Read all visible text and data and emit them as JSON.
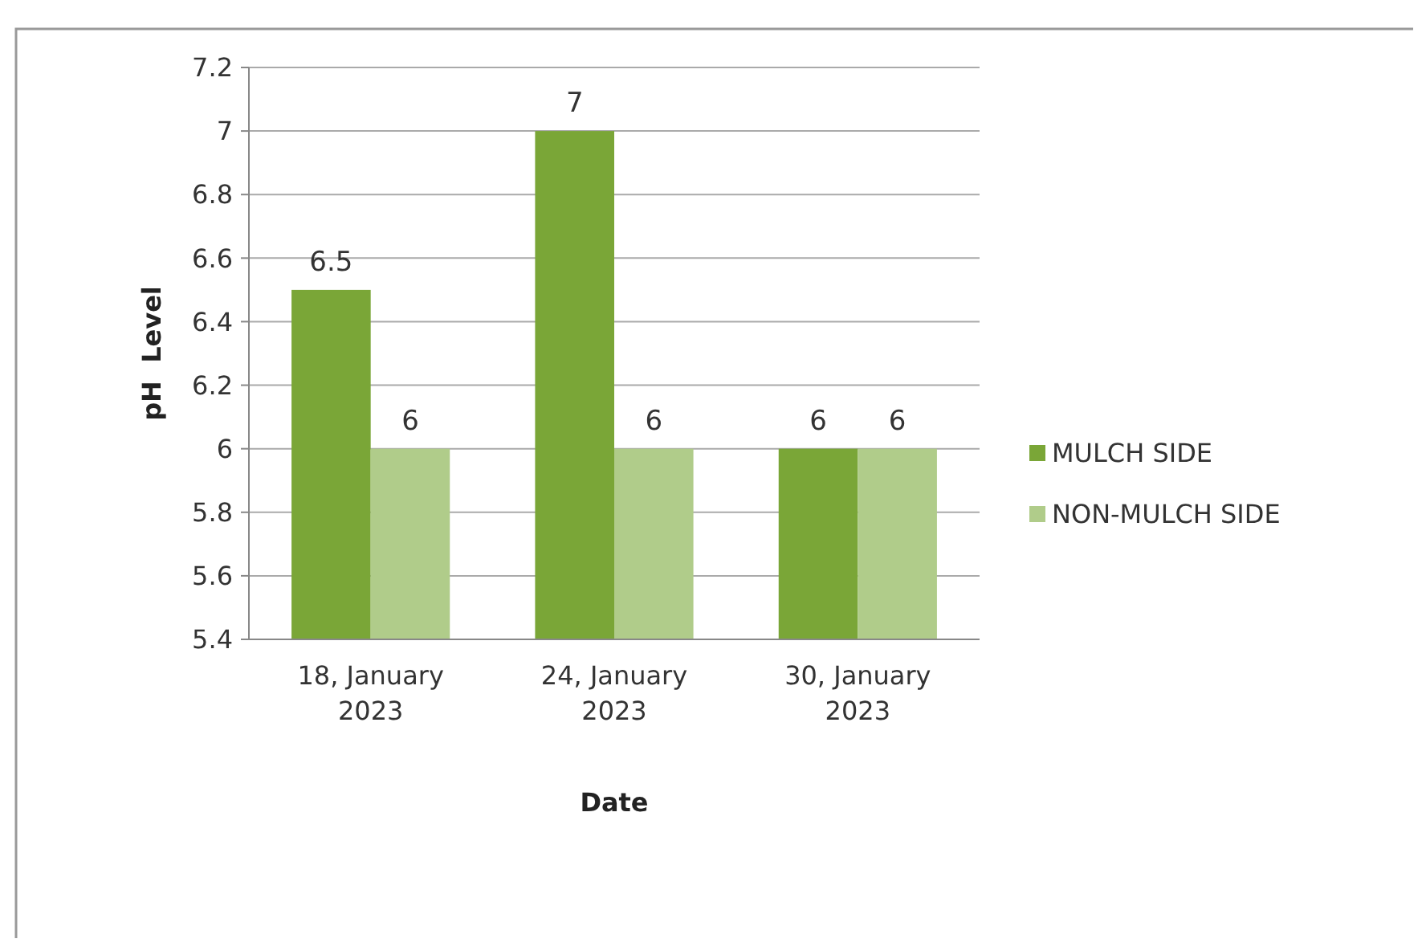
{
  "chart_data": {
    "type": "bar",
    "xlabel": "Date",
    "ylabel": "pH  Level",
    "categories": [
      "18, January 2023",
      "24, January 2023",
      "30, January 2023"
    ],
    "series": [
      {
        "name": "MULCH SIDE",
        "color": "#7aa637",
        "values": [
          6.5,
          7,
          6
        ]
      },
      {
        "name": "NON-MULCH SIDE",
        "color": "#b0cc8a",
        "values": [
          6,
          6,
          6
        ]
      }
    ],
    "ylim": [
      5.4,
      7.2
    ],
    "yticks": [
      5.4,
      5.6,
      5.8,
      6,
      6.2,
      6.4,
      6.6,
      6.8,
      7,
      7.2
    ],
    "grid": "y",
    "legend": "right",
    "data_labels": true
  }
}
